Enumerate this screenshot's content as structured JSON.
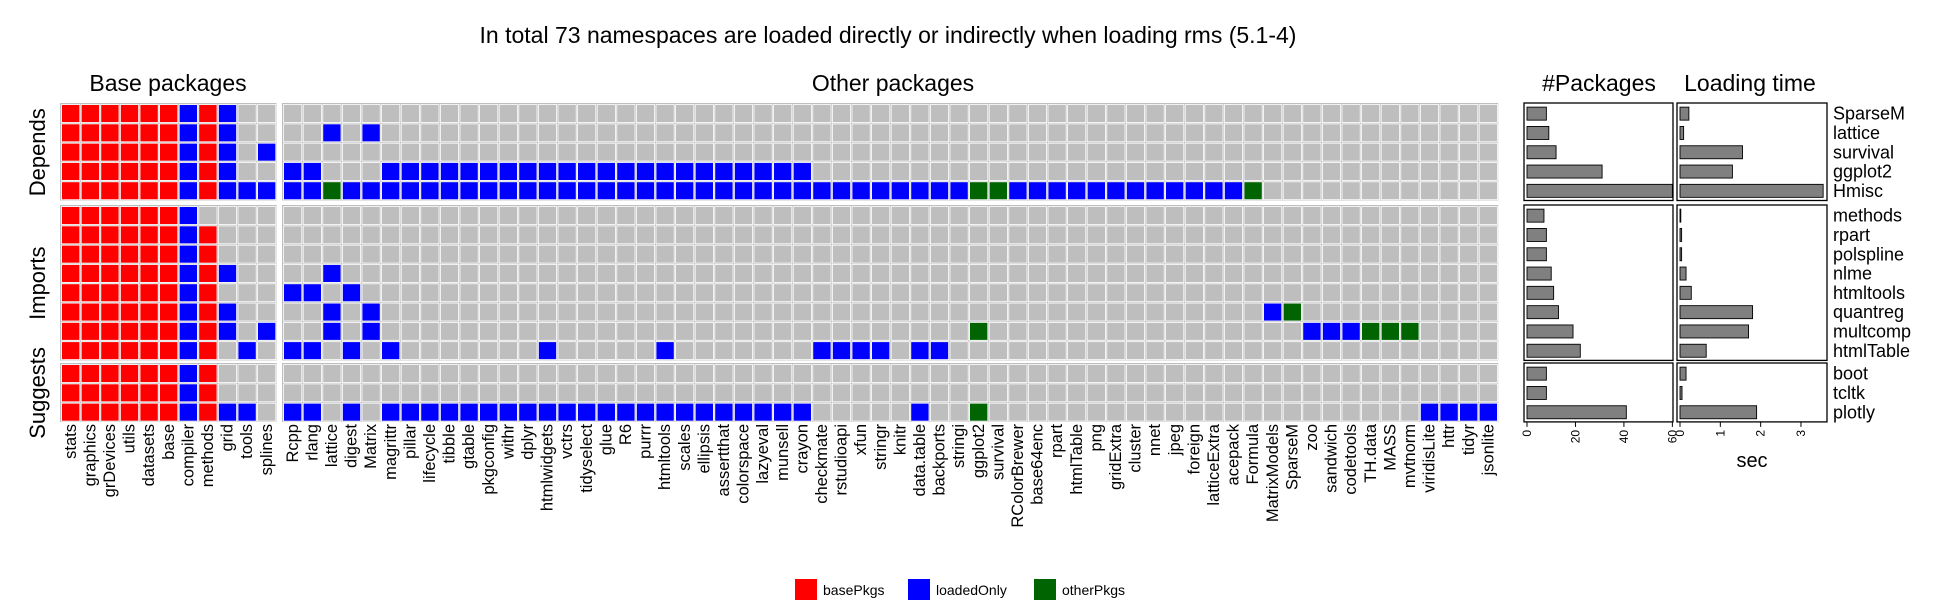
{
  "chart_data": {
    "type": "heatmap",
    "title": "In total 73 namespaces are loaded directly or indirectly when loading rms (5.1-4)",
    "panel_titles": {
      "base": "Base packages",
      "other": "Other packages",
      "npkg": "#Packages",
      "time": "Loading time"
    },
    "colors": {
      "basePkgs": "#ff0000",
      "loadedOnly": "#0000ff",
      "otherPkgs": "#006400",
      "empty": "#bebebe"
    },
    "legend": [
      {
        "key": "basePkgs",
        "label": "basePkgs"
      },
      {
        "key": "loadedOnly",
        "label": "loadedOnly"
      },
      {
        "key": "otherPkgs",
        "label": "otherPkgs"
      }
    ],
    "legend_position": "bottom",
    "base_columns": [
      "stats",
      "graphics",
      "grDevices",
      "utils",
      "datasets",
      "base",
      "compiler",
      "methods",
      "grid",
      "tools",
      "splines"
    ],
    "other_columns": [
      "Rcpp",
      "rlang",
      "lattice",
      "digest",
      "Matrix",
      "magrittr",
      "pillar",
      "lifecycle",
      "tibble",
      "gtable",
      "pkgconfig",
      "withr",
      "dplyr",
      "htmlwidgets",
      "vctrs",
      "tidyselect",
      "glue",
      "R6",
      "purrr",
      "htmltools",
      "scales",
      "ellipsis",
      "assertthat",
      "colorspace",
      "lazyeval",
      "munsell",
      "crayon",
      "checkmate",
      "rstudioapi",
      "xfun",
      "stringr",
      "knitr",
      "data.table",
      "backports",
      "stringi",
      "ggplot2",
      "survival",
      "RColorBrewer",
      "base64enc",
      "rpart",
      "htmlTable",
      "png",
      "gridExtra",
      "cluster",
      "nnet",
      "jpeg",
      "foreign",
      "latticeExtra",
      "acepack",
      "Formula",
      "MatrixModels",
      "SparseM",
      "zoo",
      "sandwich",
      "codetools",
      "TH.data",
      "MASS",
      "mvtnorm",
      "viridisLite",
      "httr",
      "tidyr",
      "jsonlite"
    ],
    "groups": [
      {
        "name": "Depends",
        "rows": [
          {
            "package": "SparseM",
            "n_packages": 8,
            "load_time_sec": 0.22,
            "base_status": "RRRRRRBRB..",
            "other_status": ".............................................................."
          },
          {
            "package": "lattice",
            "n_packages": 9,
            "load_time_sec": 0.09,
            "base_status": "RRRRRRBRB..",
            "other_status": "..B.B........................................................."
          },
          {
            "package": "survival",
            "n_packages": 12,
            "load_time_sec": 1.55,
            "base_status": "RRRRRRBRB.B",
            "other_status": ".............................................................."
          },
          {
            "package": "ggplot2",
            "n_packages": 31,
            "load_time_sec": 1.3,
            "base_status": "RRRRRRBRB..",
            "other_status": "BB...BBBBBBBBBBBBBBBBBBBBBB..................................."
          },
          {
            "package": "Hmisc",
            "n_packages": 60,
            "load_time_sec": 3.55,
            "base_status": "RRRRRRBRBBB",
            "other_status": "BBGBBBBBBBBBBBBBBBBBBBBBBBBBBBBBBBBGGBBBBBBBBBBBBG............"
          }
        ]
      },
      {
        "name": "Imports",
        "rows": [
          {
            "package": "methods",
            "n_packages": 7,
            "load_time_sec": 0.0,
            "base_status": "RRRRRRB....",
            "other_status": ".............................................................."
          },
          {
            "package": "rpart",
            "n_packages": 8,
            "load_time_sec": 0.04,
            "base_status": "RRRRRRBR...",
            "other_status": ".............................................................."
          },
          {
            "package": "polspline",
            "n_packages": 8,
            "load_time_sec": 0.04,
            "base_status": "RRRRRRBR...",
            "other_status": ".............................................................."
          },
          {
            "package": "nlme",
            "n_packages": 10,
            "load_time_sec": 0.15,
            "base_status": "RRRRRRBRB..",
            "other_status": "..B..........................................................."
          },
          {
            "package": "htmltools",
            "n_packages": 11,
            "load_time_sec": 0.28,
            "base_status": "RRRRRRBR...",
            "other_status": "BB.B.........................................................."
          },
          {
            "package": "quantreg",
            "n_packages": 13,
            "load_time_sec": 1.8,
            "base_status": "RRRRRRBRB..",
            "other_status": "..B.B.............................................BG.........."
          },
          {
            "package": "multcomp",
            "n_packages": 19,
            "load_time_sec": 1.7,
            "base_status": "RRRRRRBRB.B",
            "other_status": "..B.B..............................G................BBBGGG....."
          },
          {
            "package": "htmlTable",
            "n_packages": 22,
            "load_time_sec": 0.65,
            "base_status": "RRRRRRBR.B.",
            "other_status": "BB.B.B.......B.....B.......BBBB.BB............................"
          }
        ]
      },
      {
        "name": "Suggests",
        "rows": [
          {
            "package": "boot",
            "n_packages": 8,
            "load_time_sec": 0.15,
            "base_status": "RRRRRRBR...",
            "other_status": ".............................................................."
          },
          {
            "package": "tcltk",
            "n_packages": 8,
            "load_time_sec": 0.05,
            "base_status": "RRRRRRBR...",
            "other_status": ".............................................................."
          },
          {
            "package": "plotly",
            "n_packages": 41,
            "load_time_sec": 1.9,
            "base_status": "RRRRRRBRBB.",
            "other_status": "BB.B.BBBBBBBBBBBBBBBBBBBBBB.....B..G......................BBBB"
          }
        ]
      }
    ],
    "npkg_axis": {
      "ticks": [
        0,
        20,
        40,
        60
      ],
      "xlim": [
        0,
        61.5
      ]
    },
    "time_axis": {
      "ticks": [
        0,
        1,
        2,
        3
      ],
      "xlim": [
        0,
        3.72
      ],
      "xlabel": "sec"
    }
  }
}
